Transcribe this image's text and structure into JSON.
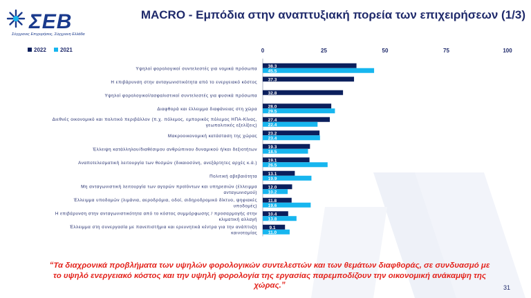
{
  "header": {
    "logo_text": "ΣΕΒ",
    "logo_tagline": "Σύγχρονες Επιχειρήσεις, Σύγχρονη Ελλάδα",
    "title": "MACRO - Εμπόδια στην αναπτυξιακή πορεία των επιχειρήσεων (1/3)"
  },
  "colors": {
    "series_2022": "#0b1f5c",
    "series_2021": "#17b6ef",
    "quote": "#e3231c",
    "title": "#1f2a6b"
  },
  "chart_data": {
    "type": "bar",
    "orientation": "horizontal",
    "xlim": [
      0,
      100
    ],
    "xticks": [
      0,
      25,
      50,
      75,
      100
    ],
    "legend_position": "top-left",
    "series": [
      {
        "name": "2022",
        "values": [
          38.3,
          37.3,
          32.8,
          28.0,
          27.4,
          23.2,
          19.3,
          19.1,
          13.1,
          12.0,
          11.8,
          10.4,
          9.1
        ]
      },
      {
        "name": "2021",
        "values": [
          45.5,
          null,
          null,
          29.5,
          22.4,
          23.4,
          18.5,
          26.5,
          19.9,
          10.2,
          19.6,
          13.8,
          11.0
        ]
      }
    ],
    "categories": [
      [
        "Υψηλοί φορολογικοί συντελεστές για νομικά πρόσωπα"
      ],
      [
        "Η επιβάρυνση στην ανταγωνιστικότητα από το ενεργειακό κόστος"
      ],
      [
        "Υψηλοί φορολογικοί/ασφαλιστικοί συντελεστές για φυσικά πρόσωπα"
      ],
      [
        "Διαφθορά και έλλειμμα διαφάνειας στη χώρα"
      ],
      [
        "Διεθνές οικονομικό και πολιτικό περιβάλλον (π.χ. πόλεμος, εμπορικός πόλεμος ΗΠΑ-Κίνας,",
        "γεωπολιτικές εξελίξεις)"
      ],
      [
        "Μακροοικονομική κατάσταση της χώρας"
      ],
      [
        "Έλλειψη κατάλληλου/διαθέσιμου ανθρώπινου δυναμικού ή/και δεξιοτήτων"
      ],
      [
        "Αναποτελεσματική λειτουργία των θεσμών (δικαιοσύνη, ανεξάρτητες αρχές κ.ά.)"
      ],
      [
        "Πολιτική αβεβαιότητα"
      ],
      [
        "Μη ανταγωνιστική λειτουργία των αγορών προϊόντων και υπηρεσιών (έλλειμμα",
        "ανταγωνισμού)"
      ],
      [
        "Έλλειμμα υποδομών (λιμάνια, αεροδρόμια, οδοί, σιδηροδρομικό δίκτυο, ψηφιακές",
        "υποδομές)"
      ],
      [
        "Η επιβάρυνση στην ανταγωνιστικότητα από το κόστος συμμόρφωσης / προσαρμογής στην",
        "κλιματική αλλαγή"
      ],
      [
        "Έλλειμμα στη συνεργασία με πανεπιστήμια και ερευνητικά κέντρα για την ανάπτυξη",
        "καινοτομίας"
      ]
    ]
  },
  "quote": [
    "“Τα διαχρονικά προβλήματα των υψηλών φορολογικών συντελεστών και των θεμάτων διαφθοράς, σε συνδυασμό με",
    "το υψηλό ενεργειακό κόστος και την υψηλή φορολογία της εργασίας παρεμποδίζουν την οικονομική ανάκαμψη της",
    "χώρας.”"
  ],
  "page_number": "31"
}
